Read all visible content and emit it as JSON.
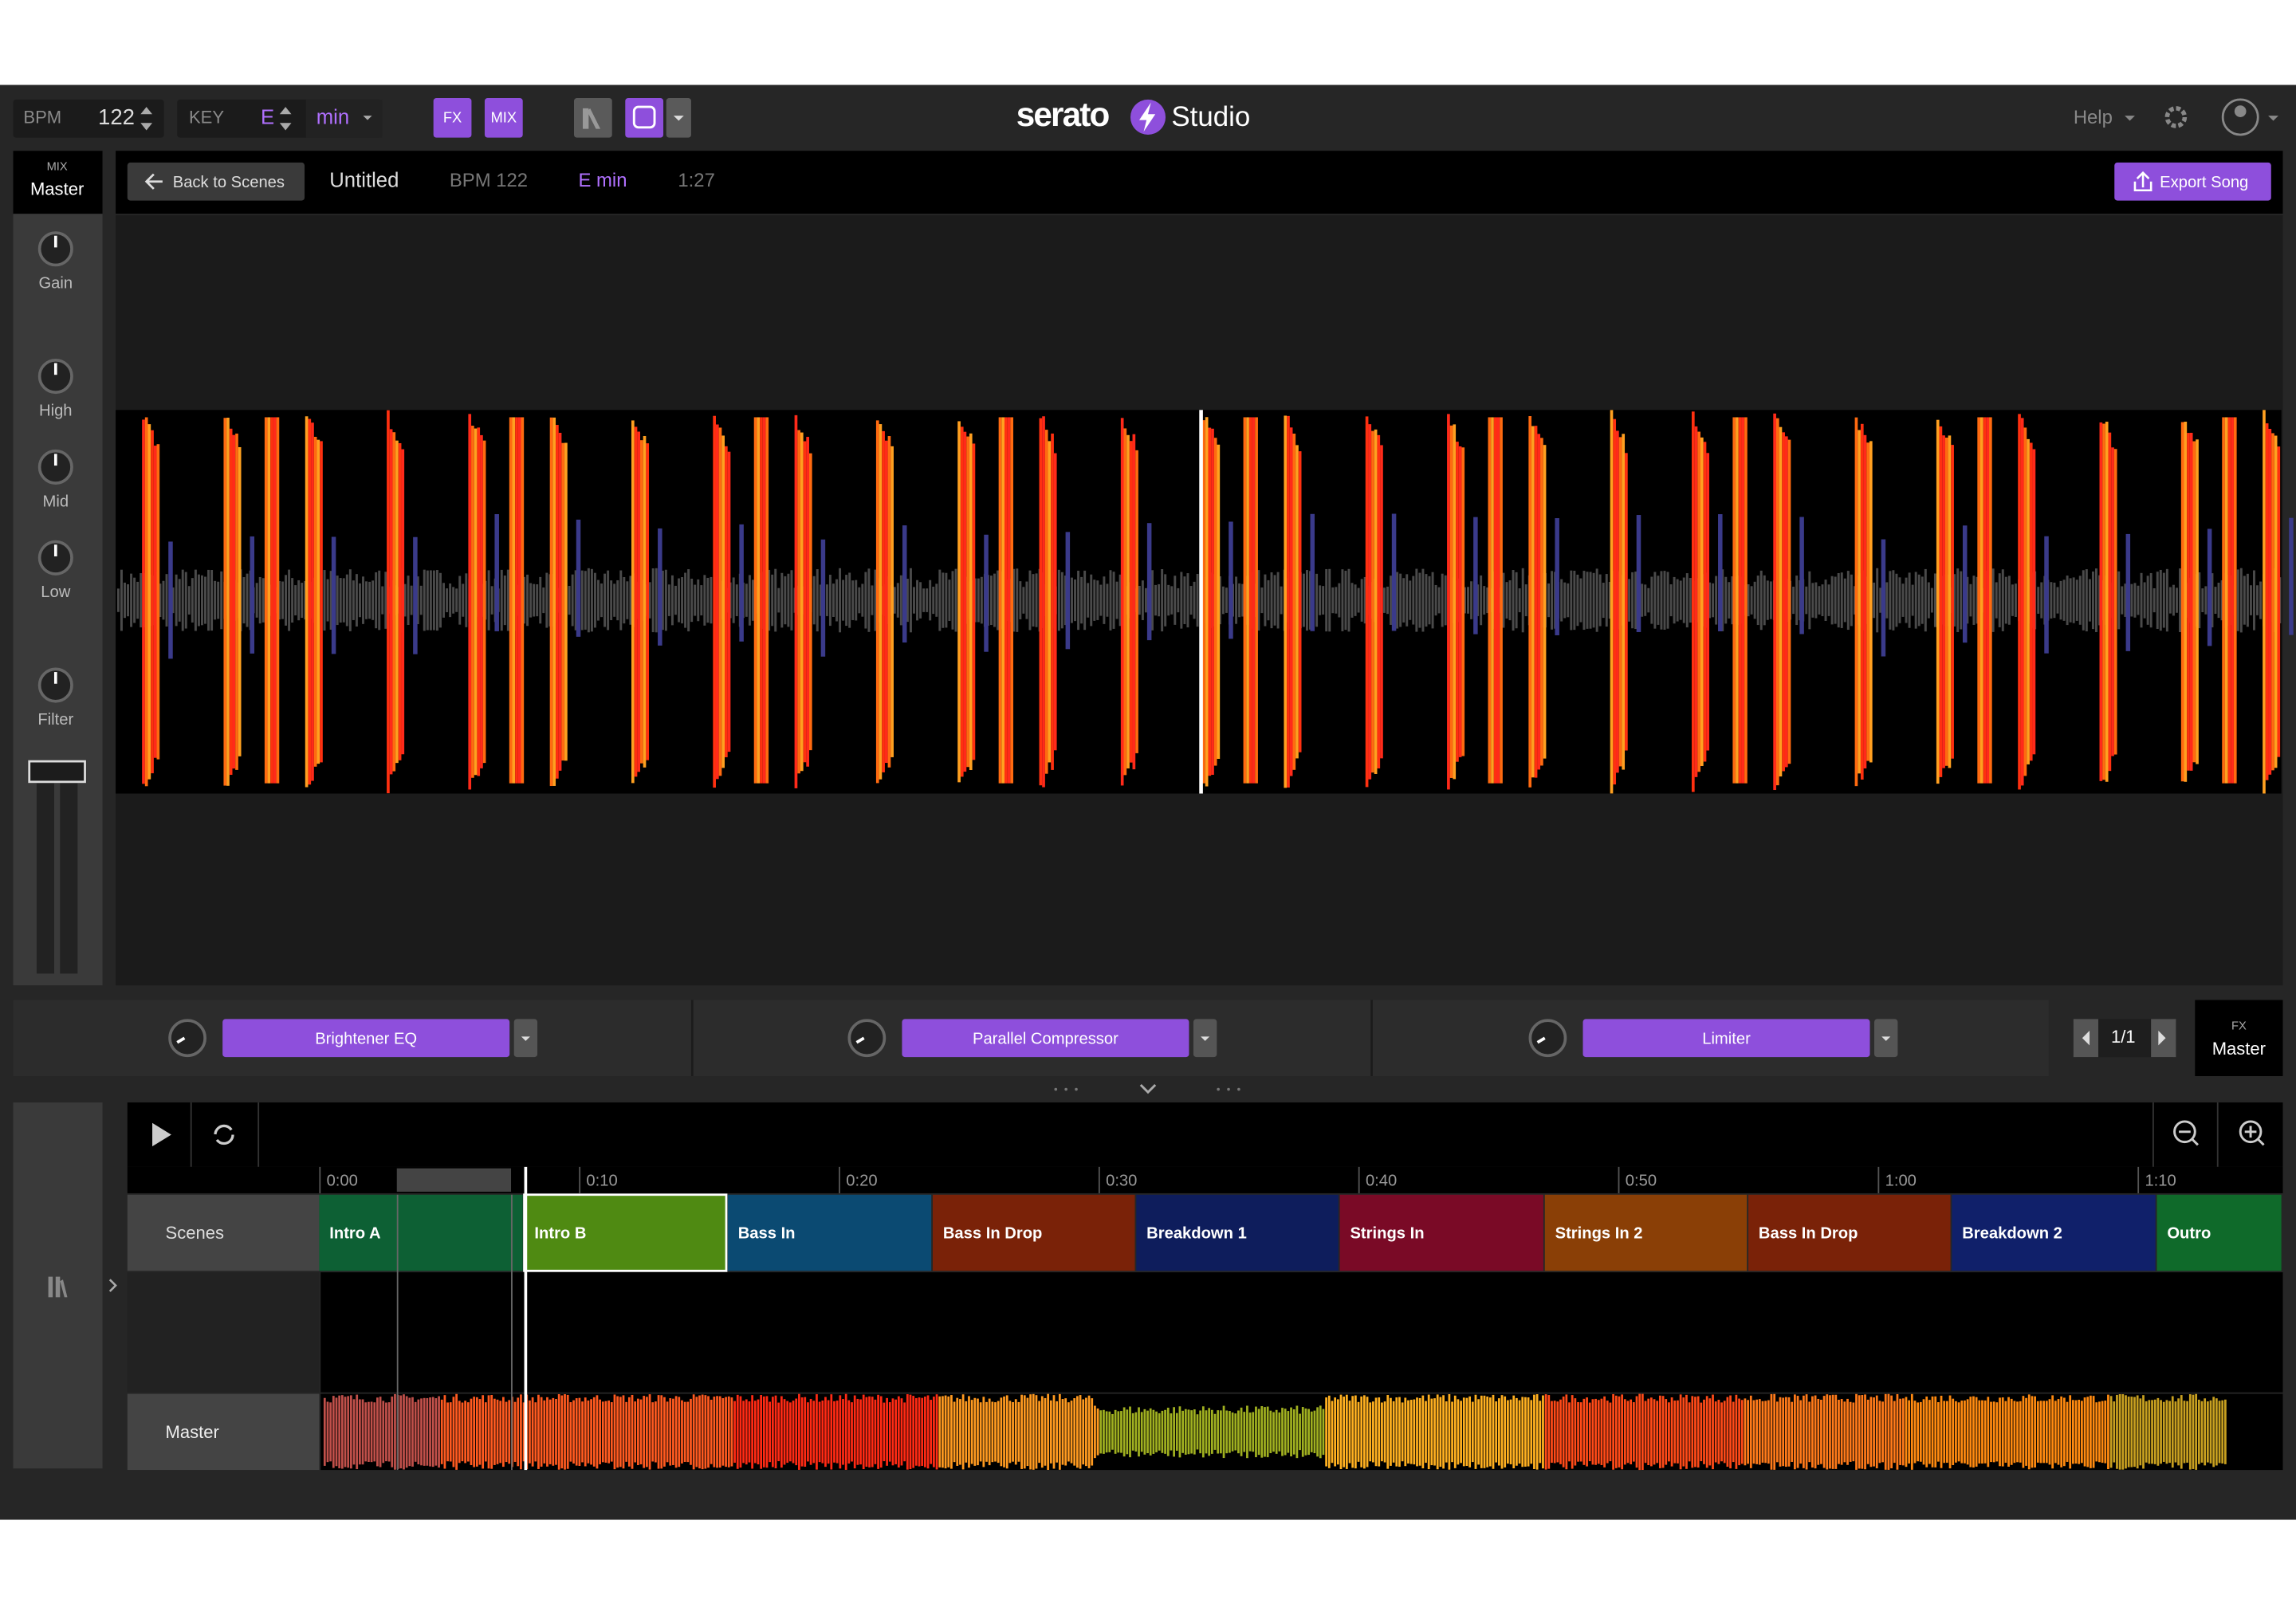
{
  "toolbar": {
    "bpm_label": "BPM",
    "bpm": "122",
    "key_label": "KEY",
    "key": "E",
    "key_mode": "min",
    "fx": "FX",
    "mix": "MIX",
    "logo": "serato",
    "logo_suffix": "Studio",
    "help": "Help"
  },
  "mixer": {
    "mix_label": "MIX",
    "channel": "Master",
    "knobs": [
      "Gain",
      "High",
      "Mid",
      "Low",
      "Filter"
    ]
  },
  "song_bar": {
    "back": "Back to Scenes",
    "title": "Untitled",
    "bpm": "BPM 122",
    "key": "E min",
    "duration": "1:27",
    "export": "Export Song"
  },
  "fx": {
    "slots": [
      "Brightener EQ",
      "Parallel Compressor",
      "Limiter"
    ],
    "page": "1/1",
    "fx_label": "FX",
    "channel": "Master"
  },
  "timeline": {
    "times": [
      "0:00",
      "0:10",
      "0:20",
      "0:30",
      "0:40",
      "0:50",
      "1:00",
      "1:10"
    ],
    "scenes_label": "Scenes",
    "master": "Master",
    "scenes": [
      {
        "name": "Intro A",
        "color": "#0d6034"
      },
      {
        "name": "Intro B",
        "color": "#4f8a12"
      },
      {
        "name": "Bass In",
        "color": "#0b4a72"
      },
      {
        "name": "Bass In Drop",
        "color": "#7a2208"
      },
      {
        "name": "Breakdown 1",
        "color": "#0e1d5c"
      },
      {
        "name": "Strings In",
        "color": "#7a0a26"
      },
      {
        "name": "Strings In 2",
        "color": "#8a3f06"
      },
      {
        "name": "Bass In Drop",
        "color": "#7a2208"
      },
      {
        "name": "Breakdown 2",
        "color": "#10206a"
      },
      {
        "name": "Outro",
        "color": "#0f6a2a"
      }
    ]
  }
}
